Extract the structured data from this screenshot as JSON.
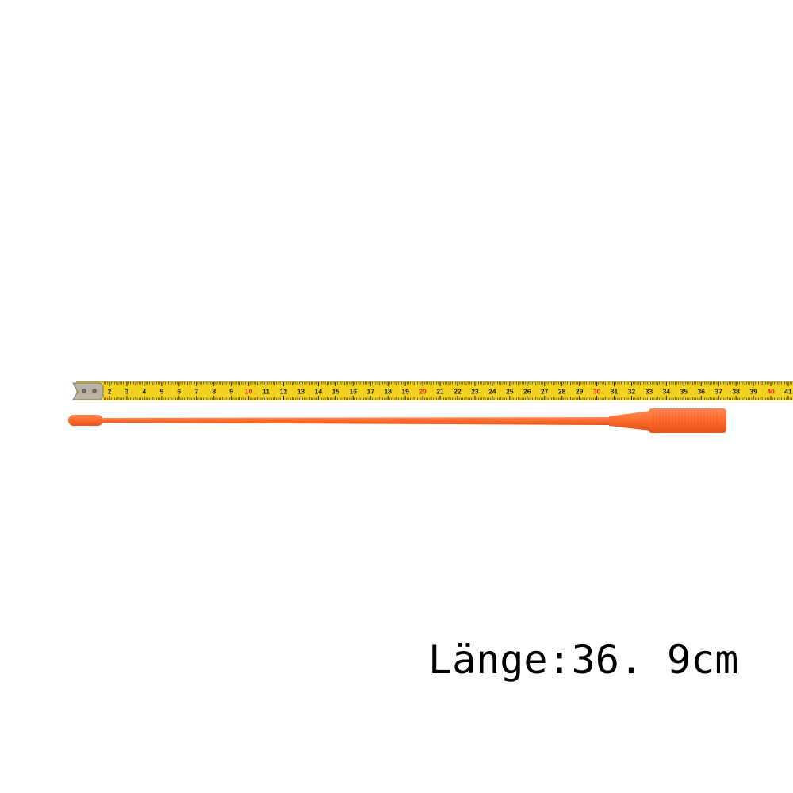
{
  "photo": {
    "caption": "Länge:36. 9cm",
    "tape_measure": {
      "unit": "cm",
      "visible_numbers": [
        "2",
        "3",
        "4",
        "5",
        "6",
        "7",
        "8",
        "9",
        "10",
        "11",
        "12",
        "13",
        "14",
        "15",
        "16",
        "17",
        "18",
        "19",
        "20",
        "21",
        "22",
        "23",
        "24",
        "25",
        "26",
        "27",
        "28",
        "29",
        "30",
        "31",
        "32",
        "33",
        "34",
        "35",
        "36",
        "37",
        "38",
        "39",
        "40",
        "41"
      ],
      "highlighted_numbers": [
        "10",
        "20",
        "30",
        "40"
      ],
      "colors": {
        "tape": "#f3d21f",
        "tape_edge": "#c8a40a",
        "ticks": "#1a1a1a",
        "highlight_text": "#e2261b",
        "hook": "#b9b3a6"
      }
    },
    "antenna": {
      "length_cm": 36.9,
      "colors": {
        "body": "#ff6a2a",
        "shade": "#e2541c",
        "highlight": "#ff8a55"
      }
    },
    "background_color": "#ffffff"
  }
}
